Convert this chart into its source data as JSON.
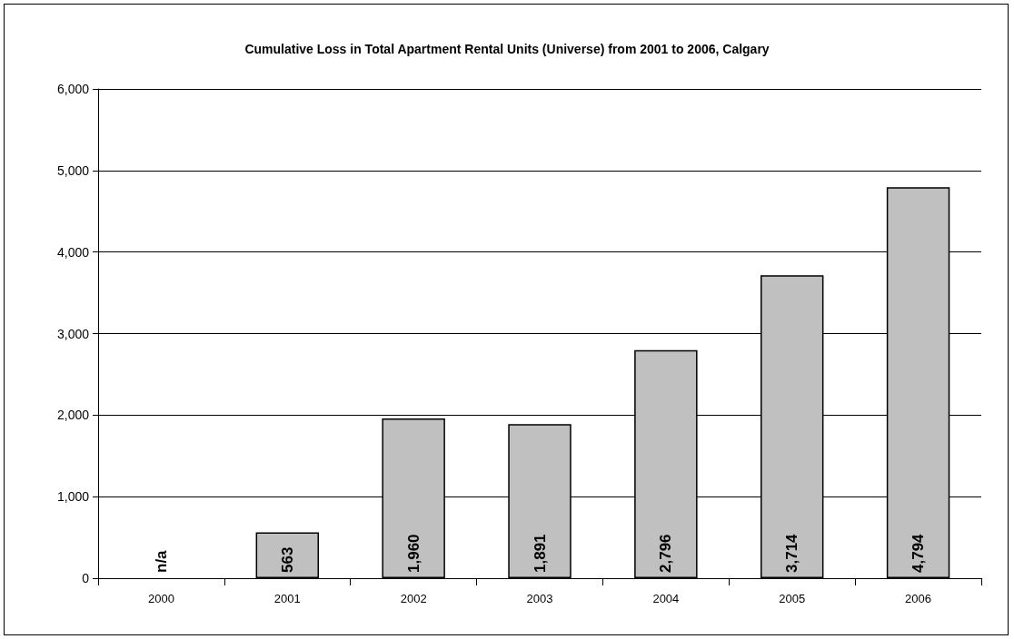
{
  "chart_data": {
    "type": "bar",
    "title": "Cumulative Loss in Total Apartment Rental Units (Universe) from 2001 to 2006, Calgary",
    "categories": [
      "2000",
      "2001",
      "2002",
      "2003",
      "2004",
      "2005",
      "2006"
    ],
    "values": [
      null,
      563,
      1960,
      1891,
      2796,
      3714,
      4794
    ],
    "value_labels": [
      "n/a",
      "563",
      "1,960",
      "1,891",
      "2,796",
      "3,714",
      "4,794"
    ],
    "color": "#c0c0c0",
    "ylim": [
      0,
      6000
    ],
    "yticks": [
      {
        "value": 0,
        "label": "0"
      },
      {
        "value": 1000,
        "label": "1,000"
      },
      {
        "value": 2000,
        "label": "2,000"
      },
      {
        "value": 3000,
        "label": "3,000"
      },
      {
        "value": 4000,
        "label": "4,000"
      },
      {
        "value": 5000,
        "label": "5,000"
      },
      {
        "value": 6000,
        "label": "6,000"
      }
    ],
    "grid": "y"
  }
}
